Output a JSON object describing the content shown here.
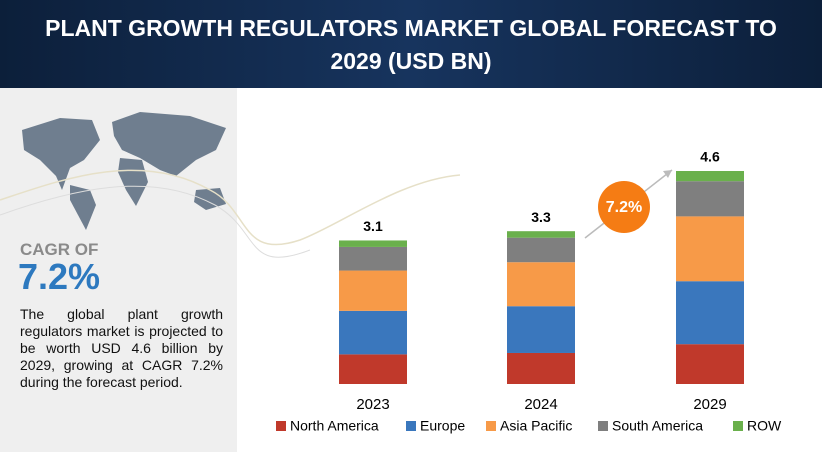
{
  "chart_data": {
    "type": "stacked_bar",
    "title": "PLANT GROWTH REGULATORS MARKET GLOBAL FORECAST TO 2029 (USD BN)",
    "categories": [
      "2023",
      "2024",
      "2029"
    ],
    "totals": [
      3.1,
      3.3,
      4.6
    ],
    "series": [
      {
        "name": "North America",
        "color": "#c0392b",
        "values": [
          0.64,
          0.67,
          0.86
        ]
      },
      {
        "name": "Europe",
        "color": "#3a77bd",
        "values": [
          0.94,
          1.01,
          1.36
        ]
      },
      {
        "name": "Asia Pacific",
        "color": "#f79a48",
        "values": [
          0.87,
          0.95,
          1.4
        ]
      },
      {
        "name": "South America",
        "color": "#7f7f7f",
        "values": [
          0.51,
          0.53,
          0.76
        ]
      },
      {
        "name": "ROW",
        "color": "#6ab04c",
        "values": [
          0.14,
          0.14,
          0.22
        ]
      }
    ],
    "badge": "7.2%"
  },
  "sidebar": {
    "cagr_label": "CAGR OF",
    "cagr_value": "7.2%",
    "description": "The global plant growth regulators market is projected to be worth USD 4.6 billion by 2029, growing at CAGR 7.2% during the forecast period."
  }
}
